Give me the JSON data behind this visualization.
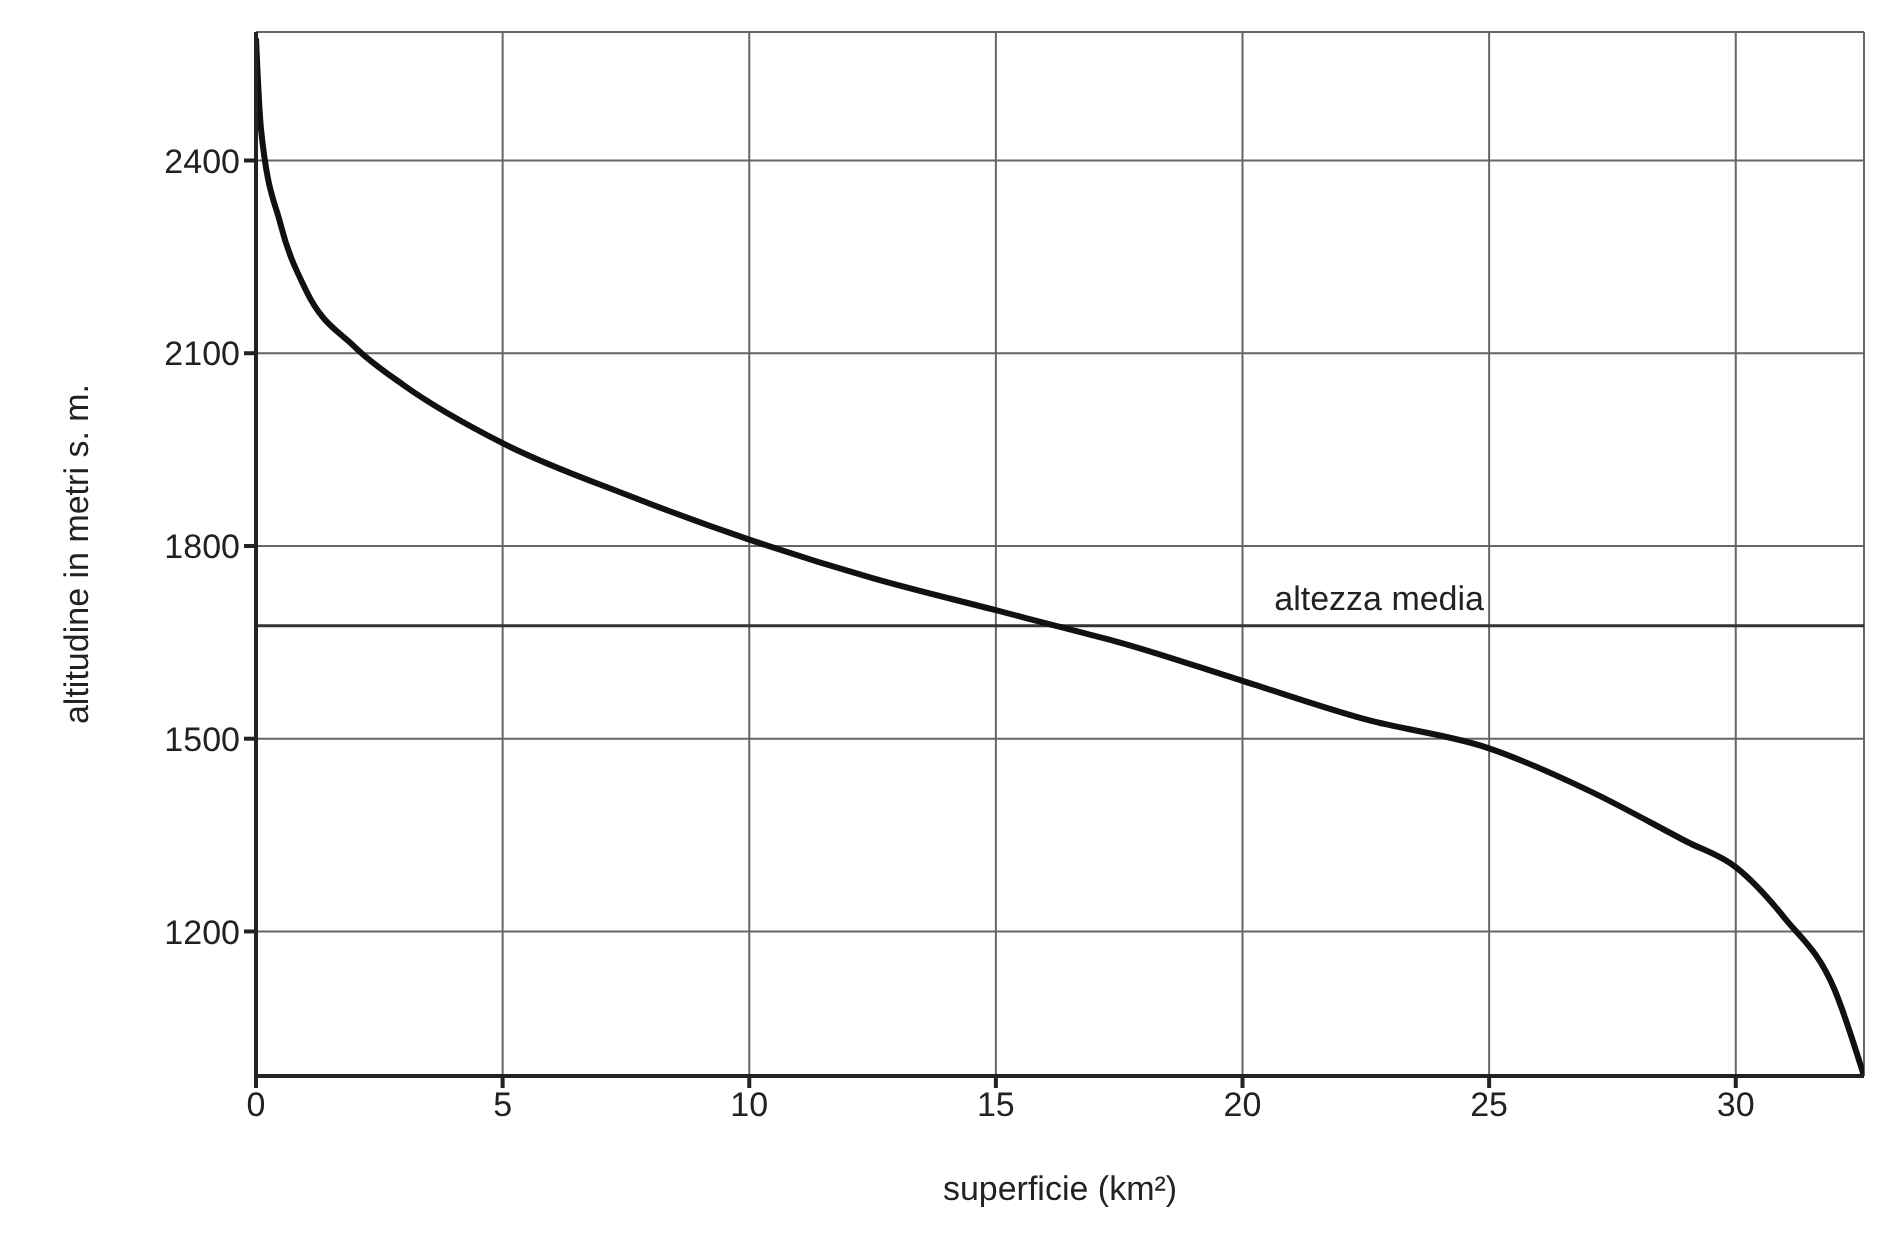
{
  "chart_data": {
    "type": "line",
    "xlabel": "superficie (km²)",
    "ylabel": "altitudine in metri  s. m.",
    "x": [
      0,
      0.1,
      0.5,
      1,
      2,
      3,
      5,
      7.5,
      10,
      12.5,
      15,
      16.2,
      17.5,
      20,
      22.5,
      25,
      27,
      29,
      30,
      31,
      32,
      32.6
    ],
    "series": [
      {
        "color": "#111111",
        "values": [
          2590,
          2450,
          2300,
          2200,
          2110,
          2050,
          1960,
          1880,
          1810,
          1750,
          1700,
          1676,
          1650,
          1590,
          1530,
          1485,
          1420,
          1340,
          1300,
          1220,
          1110,
          975
        ]
      }
    ],
    "xlim": [
      0,
      32.6
    ],
    "xticks": [
      0,
      5,
      10,
      15,
      20,
      25,
      30
    ],
    "ylim": [
      975,
      2600
    ],
    "yticks": [
      1200,
      1500,
      1800,
      2100,
      2400
    ],
    "ref_lines": [
      {
        "axis": "y",
        "value": 1676,
        "label": "altezza media",
        "color": "#333333"
      }
    ],
    "grid": true,
    "marker": "none",
    "line_style": "solid"
  }
}
